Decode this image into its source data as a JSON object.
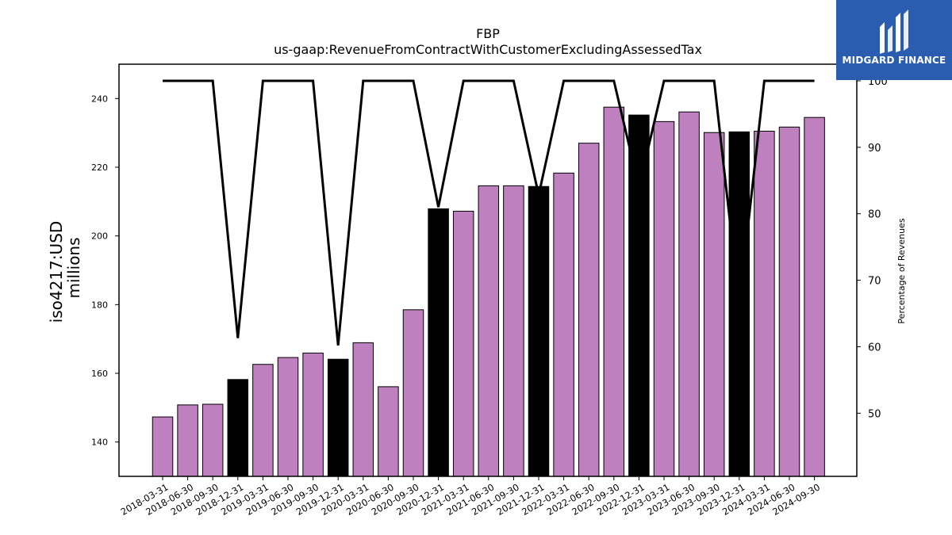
{
  "chart_data": {
    "type": "bar",
    "title": "FBP",
    "subtitle": "us-gaap:RevenueFromContractWithCustomerExcludingAssessedTax",
    "ylabel": "iso4217:USD",
    "ylabel2": "millions",
    "y2label": "Percentage of Revenues",
    "ylim": [
      130,
      250
    ],
    "y2lim": [
      40.5,
      102.5
    ],
    "yticks": [
      140,
      160,
      180,
      200,
      220,
      240
    ],
    "y2ticks": [
      50,
      60,
      70,
      80,
      90,
      100
    ],
    "categories": [
      "2018-03-31",
      "2018-06-30",
      "2018-09-30",
      "2018-12-31",
      "2019-03-31",
      "2019-06-30",
      "2019-09-30",
      "2019-12-31",
      "2020-03-31",
      "2020-06-30",
      "2020-09-30",
      "2020-12-31",
      "2021-03-31",
      "2021-06-30",
      "2021-09-30",
      "2021-12-31",
      "2022-03-31",
      "2022-06-30",
      "2022-09-30",
      "2022-12-31",
      "2023-03-31",
      "2023-06-30",
      "2023-09-30",
      "2023-12-31",
      "2024-03-31",
      "2024-06-30",
      "2024-09-30"
    ],
    "series": [
      {
        "type": "bar",
        "values": [
          147.3,
          150.8,
          151.0,
          158.2,
          162.6,
          164.6,
          165.9,
          164.1,
          168.9,
          156.1,
          178.5,
          207.9,
          207.2,
          214.6,
          214.6,
          214.4,
          218.3,
          227.0,
          237.5,
          235.2,
          233.3,
          236.1,
          230.1,
          230.3,
          230.5,
          231.7,
          234.5
        ],
        "highlight": [
          false,
          false,
          false,
          true,
          false,
          false,
          false,
          true,
          false,
          false,
          false,
          true,
          false,
          false,
          false,
          true,
          false,
          false,
          false,
          true,
          false,
          false,
          false,
          true,
          false,
          false,
          false
        ]
      },
      {
        "type": "line",
        "axis": "right",
        "values": [
          100,
          100,
          100,
          61.3,
          100,
          100,
          100,
          60.2,
          100,
          100,
          100,
          81.0,
          100,
          100,
          100,
          82.8,
          100,
          100,
          100,
          84.0,
          100,
          100,
          100,
          66.4,
          100,
          100,
          100
        ]
      }
    ],
    "colors": {
      "bar": "#bf80bf",
      "highlight": "#000000",
      "line": "#000000"
    }
  },
  "logo": {
    "text": "MIDGARD FINANCE",
    "background": "#2a5db0"
  }
}
